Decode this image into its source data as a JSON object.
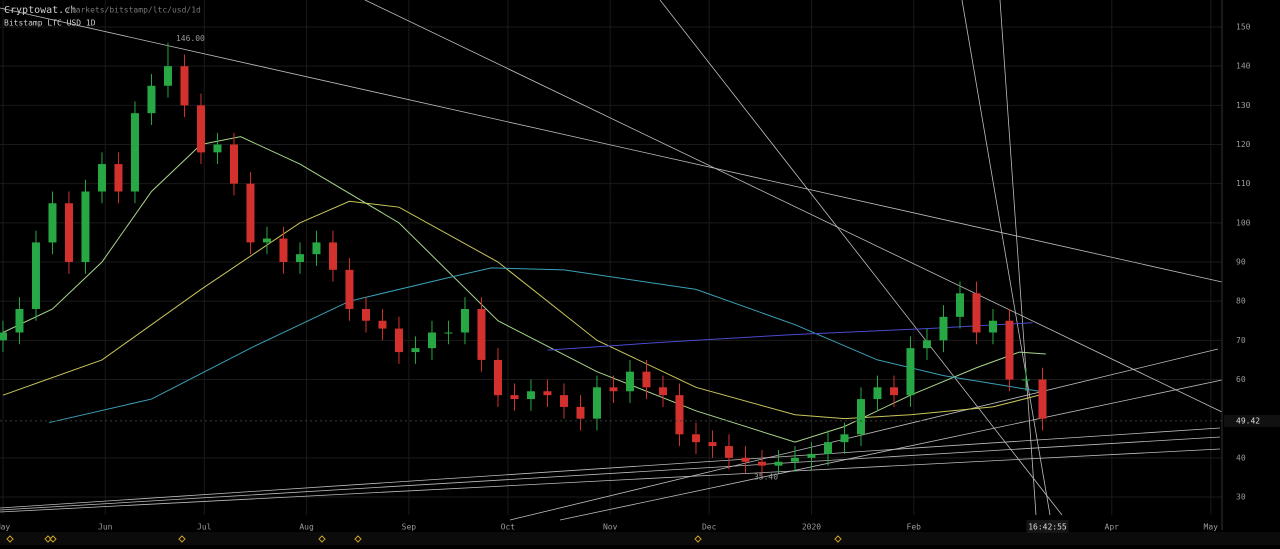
{
  "header": {
    "site": "Cryptowat.ch",
    "path": "/markets/bitstamp/ltc/usd/1d",
    "market": "Bitstamp LTC USD 1D"
  },
  "chart_data": {
    "type": "candlestick",
    "x": [
      0,
      5,
      10,
      15,
      20,
      25,
      30,
      35,
      40,
      45,
      50,
      55,
      60,
      65,
      70,
      75,
      80,
      85,
      90,
      95,
      100,
      105,
      110,
      115,
      120,
      125,
      130,
      135,
      140,
      145,
      150,
      155,
      160,
      165,
      170,
      175,
      180,
      185,
      190,
      195,
      200,
      205,
      210,
      215,
      220,
      225,
      230,
      235,
      240,
      245,
      250,
      255,
      260,
      265,
      270,
      275,
      280,
      285,
      290,
      295,
      300,
      305,
      310,
      315
    ],
    "open": [
      70,
      72,
      78,
      95,
      105,
      90,
      108,
      115,
      108,
      128,
      135,
      140,
      130,
      118,
      120,
      110,
      95,
      96,
      90,
      92,
      95,
      88,
      78,
      75,
      73,
      67,
      68,
      72,
      72,
      78,
      65,
      56,
      55,
      57,
      56,
      53,
      50,
      58,
      57,
      62,
      58,
      56,
      46,
      44,
      43,
      40,
      39,
      38,
      39,
      40,
      41,
      44,
      46,
      55,
      58,
      56,
      68,
      70,
      76,
      82,
      72,
      75,
      60,
      60
    ],
    "high": [
      75,
      81,
      98,
      108,
      108,
      111,
      118,
      118,
      131,
      138,
      146,
      143,
      133,
      123,
      123,
      113,
      99,
      99,
      95,
      98,
      98,
      91,
      81,
      78,
      76,
      71,
      75,
      75,
      81,
      81,
      68,
      59,
      60,
      60,
      59,
      56,
      61,
      61,
      65,
      65,
      61,
      59,
      49,
      47,
      46,
      43,
      42,
      42,
      43,
      44,
      47,
      49,
      58,
      61,
      61,
      71,
      73,
      79,
      85,
      85,
      78,
      78,
      63,
      63
    ],
    "low": [
      67,
      69,
      75,
      92,
      87,
      87,
      105,
      105,
      105,
      125,
      132,
      127,
      115,
      115,
      107,
      92,
      92,
      87,
      87,
      89,
      85,
      75,
      72,
      70,
      64,
      64,
      65,
      69,
      69,
      62,
      53,
      52,
      52,
      53,
      50,
      47,
      47,
      54,
      54,
      55,
      53,
      43,
      41,
      40,
      37,
      36,
      35.4,
      36,
      36.5,
      37,
      38,
      41,
      43,
      52,
      53,
      53,
      65,
      67,
      73,
      69,
      69,
      57,
      57,
      47
    ],
    "close": [
      72,
      78,
      95,
      105,
      90,
      108,
      115,
      108,
      128,
      135,
      140,
      130,
      118,
      120,
      110,
      95,
      96,
      90,
      92,
      95,
      88,
      78,
      75,
      73,
      67,
      68,
      72,
      72,
      78,
      65,
      56,
      55,
      57,
      56,
      53,
      50,
      58,
      57,
      62,
      58,
      56,
      46,
      44,
      43,
      40,
      39,
      38,
      39,
      40,
      41,
      44,
      46,
      55,
      58,
      56,
      68,
      70,
      76,
      82,
      72,
      75,
      60,
      60,
      50
    ],
    "up_color": "#27a844",
    "down_color": "#d3312e",
    "high_label": {
      "value": 146,
      "label": "146.00"
    },
    "low_label": {
      "value": 35.4,
      "label": "35.40"
    },
    "last_price": 49.42,
    "time_label": "16:42:55",
    "ma_lines": [
      {
        "color": "#c9c55a",
        "x": [
          0,
          30,
          60,
          90,
          105,
          120,
          150,
          180,
          210,
          240,
          255,
          275,
          300,
          314
        ],
        "values": [
          56,
          65,
          83,
          100,
          105.5,
          104,
          90,
          70,
          58,
          51,
          50,
          51,
          53,
          56
        ]
      },
      {
        "color": "#a7d68a",
        "x": [
          0,
          15,
          30,
          45,
          60,
          72,
          90,
          120,
          150,
          180,
          210,
          240,
          255,
          275,
          295,
          308,
          316
        ],
        "values": [
          72,
          78,
          90,
          108,
          120,
          122,
          115,
          100,
          75,
          62,
          52,
          44,
          48,
          56,
          63,
          67,
          66.5
        ]
      },
      {
        "color": "#3aa0b8",
        "x": [
          14,
          45,
          75,
          105,
          135,
          148,
          170,
          210,
          240,
          265,
          285,
          314
        ],
        "values": [
          49,
          55,
          68,
          80,
          86,
          88.5,
          88,
          83,
          74,
          65,
          61,
          57
        ]
      },
      {
        "color": "#4a4ad0",
        "x": [
          165,
          200,
          240,
          280,
          312
        ],
        "values": [
          67.5,
          69.5,
          71.5,
          73,
          74.5
        ]
      }
    ],
    "xlim": [
      -0.9,
      369.4
    ],
    "xticks": [
      {
        "value": 0,
        "label": "May"
      },
      {
        "value": 31,
        "label": "Jun"
      },
      {
        "value": 61,
        "label": "Jul"
      },
      {
        "value": 92,
        "label": "Aug"
      },
      {
        "value": 123,
        "label": "Sep"
      },
      {
        "value": 153,
        "label": "Oct"
      },
      {
        "value": 184,
        "label": "Nov"
      },
      {
        "value": 214,
        "label": "Dec"
      },
      {
        "value": 245,
        "label": "2020"
      },
      {
        "value": 276,
        "label": "Feb"
      },
      {
        "value": 336,
        "label": "Apr"
      },
      {
        "value": 366,
        "label": "May"
      }
    ],
    "ylim": [
      25.4,
      156.9
    ],
    "yticks": [
      30,
      40,
      60,
      70,
      80,
      90,
      100,
      110,
      120,
      130,
      140,
      150
    ],
    "grid": true
  }
}
